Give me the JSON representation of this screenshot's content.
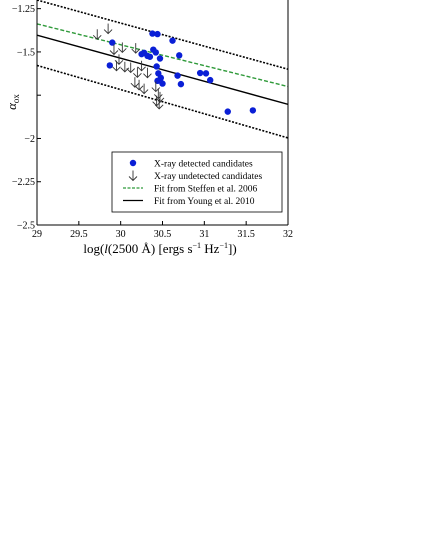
{
  "chart_data": {
    "type": "scatter",
    "xlabel": "log(l(2500 Å) [ergs s⁻¹ Hz⁻¹])",
    "xlabel_parts": {
      "pre": "log(",
      "italic": "l",
      "mid": "(2500 Å) [ergs s",
      "sup1": "−1",
      "mid2": " Hz",
      "sup2": "−1",
      "post": "])"
    },
    "ylabel": "α",
    "ylabel_sub": "ox",
    "xlim": [
      29,
      32
    ],
    "ylim": [
      -2.5,
      -1.2
    ],
    "xticks": [
      29,
      29.5,
      30,
      30.5,
      31,
      31.5,
      32
    ],
    "xtick_labels": [
      "29",
      "29.5",
      "30",
      "30.5",
      "31",
      "31.5",
      "32"
    ],
    "yticks": [
      -2.5,
      -2.25,
      -2,
      -1.75,
      -1.5,
      -1.25
    ],
    "ytick_labels": [
      "−2.5",
      "−2.25",
      "−2",
      "",
      "−1.5",
      "−1.25"
    ],
    "legend_placement": "lower-right",
    "series": [
      {
        "name": "X-ray detected candidates",
        "marker": "circle",
        "color": "#0a1fd6",
        "points": [
          [
            29.9,
            -1.446
          ],
          [
            29.87,
            -1.578
          ],
          [
            30.25,
            -1.513
          ],
          [
            30.28,
            -1.505
          ],
          [
            30.32,
            -1.523
          ],
          [
            30.35,
            -1.528
          ],
          [
            30.38,
            -1.394
          ],
          [
            30.44,
            -1.397
          ],
          [
            30.39,
            -1.487
          ],
          [
            30.42,
            -1.503
          ],
          [
            30.47,
            -1.538
          ],
          [
            30.43,
            -1.584
          ],
          [
            30.45,
            -1.624
          ],
          [
            30.48,
            -1.65
          ],
          [
            30.44,
            -1.667
          ],
          [
            30.5,
            -1.683
          ],
          [
            30.62,
            -1.435
          ],
          [
            30.7,
            -1.52
          ],
          [
            30.68,
            -1.637
          ],
          [
            30.72,
            -1.686
          ],
          [
            30.95,
            -1.622
          ],
          [
            31.02,
            -1.624
          ],
          [
            31.07,
            -1.663
          ],
          [
            31.28,
            -1.845
          ],
          [
            31.58,
            -1.838
          ]
        ]
      },
      {
        "name": "X-ray undetected candidates",
        "marker": "down-arrow",
        "color": "#333333",
        "points": [
          [
            29.72,
            -1.398
          ],
          [
            29.85,
            -1.365
          ],
          [
            29.92,
            -1.486
          ],
          [
            30.02,
            -1.474
          ],
          [
            29.98,
            -1.543
          ],
          [
            30.05,
            -1.586
          ],
          [
            30.18,
            -1.478
          ],
          [
            30.12,
            -1.59
          ],
          [
            30.2,
            -1.618
          ],
          [
            30.32,
            -1.62
          ],
          [
            30.17,
            -1.675
          ],
          [
            30.22,
            -1.69
          ],
          [
            30.28,
            -1.712
          ],
          [
            30.42,
            -1.7
          ],
          [
            30.45,
            -1.74
          ],
          [
            30.47,
            -1.76
          ],
          [
            30.43,
            -1.782
          ],
          [
            30.46,
            -1.8
          ],
          [
            29.95,
            -1.58
          ],
          [
            30.25,
            -1.58
          ]
        ]
      }
    ],
    "lines": [
      {
        "name": "Fit from Steffen et al. 2006",
        "style": "dashed",
        "color": "#2f9a3a",
        "points": [
          [
            29,
            -1.338
          ],
          [
            32,
            -1.7
          ]
        ]
      },
      {
        "name": "Fit from Young et al. 2010",
        "style": "solid",
        "color": "#000000",
        "points": [
          [
            29,
            -1.403
          ],
          [
            32,
            -1.803
          ]
        ]
      },
      {
        "name": "",
        "style": "dotted",
        "color": "#000000",
        "points": [
          [
            29,
            -1.2
          ],
          [
            32,
            -1.6
          ]
        ]
      },
      {
        "name": "",
        "style": "dotted",
        "color": "#000000",
        "points": [
          [
            29,
            -1.578
          ],
          [
            32,
            -1.997
          ]
        ]
      }
    ]
  }
}
